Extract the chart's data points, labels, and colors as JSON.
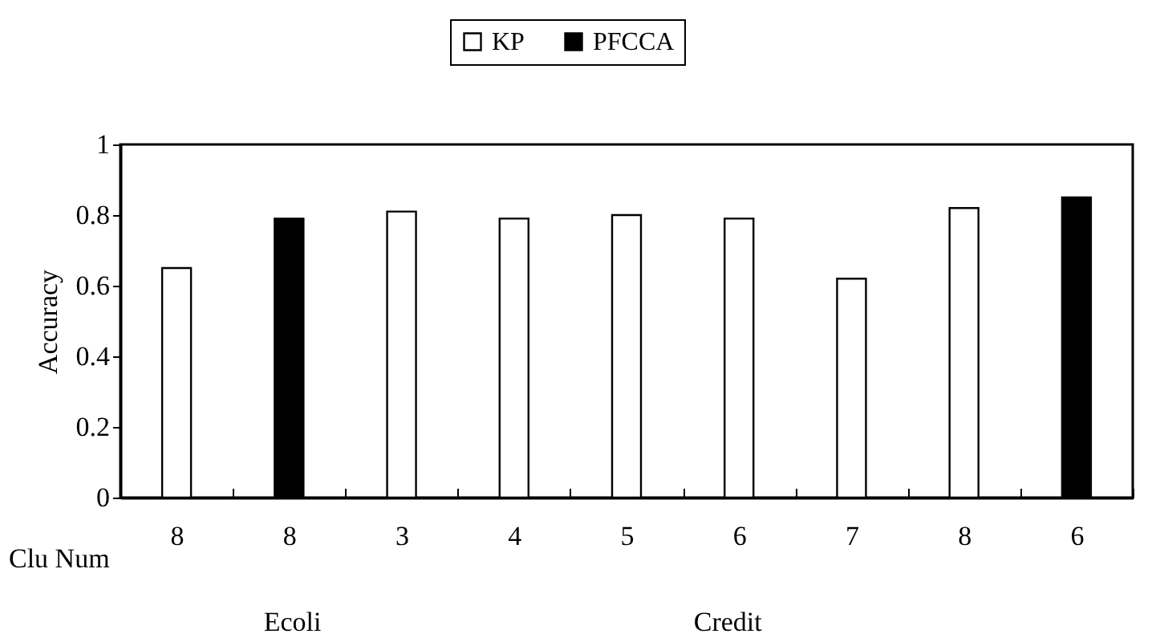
{
  "chart_data": {
    "type": "bar",
    "ylabel": "Accuracy",
    "xlabel": "Clu Num",
    "categories": [
      "8",
      "8",
      "3",
      "4",
      "5",
      "6",
      "7",
      "8",
      "6"
    ],
    "series": [
      {
        "name": "KP",
        "color": "#ffffff",
        "values": [
          0.65,
          null,
          0.81,
          0.79,
          0.8,
          0.79,
          0.62,
          0.82,
          null
        ]
      },
      {
        "name": "PFCCA",
        "color": "#000000",
        "values": [
          null,
          0.79,
          null,
          null,
          null,
          null,
          null,
          null,
          0.85
        ]
      }
    ],
    "annotations": [
      "Ecoli",
      "Credit"
    ],
    "ylim": [
      0,
      1
    ],
    "yticks": [
      0,
      0.2,
      0.4,
      0.6,
      0.8,
      1
    ],
    "grid": false,
    "legend": "top"
  }
}
